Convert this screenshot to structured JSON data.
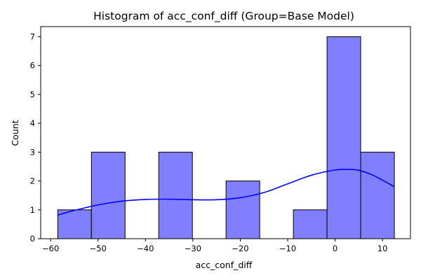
{
  "chart_data": {
    "type": "bar",
    "title": "Histogram of acc_conf_diff (Group=Base Model)",
    "xlabel": "acc_conf_diff",
    "ylabel": "Count",
    "xlim": [
      -62.1,
      15.9
    ],
    "ylim": [
      0,
      7.35
    ],
    "xticks": [
      -60,
      -50,
      -40,
      -30,
      -20,
      -10,
      0,
      10
    ],
    "xtick_labels": [
      "−60",
      "−50",
      "−40",
      "−30",
      "−20",
      "−10",
      "0",
      "10"
    ],
    "yticks": [
      0,
      1,
      2,
      3,
      4,
      5,
      6,
      7
    ],
    "ytick_labels": [
      "0",
      "1",
      "2",
      "3",
      "4",
      "5",
      "6",
      "7"
    ],
    "bins": [
      {
        "x0": -58.5,
        "x1": -51.4,
        "count": 1
      },
      {
        "x0": -51.4,
        "x1": -44.3,
        "count": 3
      },
      {
        "x0": -44.3,
        "x1": -37.2,
        "count": 0
      },
      {
        "x0": -37.2,
        "x1": -30.1,
        "count": 3
      },
      {
        "x0": -30.1,
        "x1": -23.0,
        "count": 0
      },
      {
        "x0": -23.0,
        "x1": -15.9,
        "count": 2
      },
      {
        "x0": -15.9,
        "x1": -8.8,
        "count": 0
      },
      {
        "x0": -8.8,
        "x1": -1.7,
        "count": 1
      },
      {
        "x0": -1.7,
        "x1": 5.4,
        "count": 7
      },
      {
        "x0": 5.4,
        "x1": 12.5,
        "count": 3
      }
    ],
    "kde": {
      "x": [
        -58.5,
        -55,
        -50,
        -45,
        -40,
        -35,
        -30,
        -25,
        -20,
        -15,
        -10,
        -5,
        0,
        3,
        5,
        8,
        12.5
      ],
      "y": [
        0.82,
        0.98,
        1.17,
        1.3,
        1.36,
        1.37,
        1.35,
        1.35,
        1.42,
        1.6,
        1.9,
        2.2,
        2.38,
        2.4,
        2.37,
        2.2,
        1.8
      ]
    },
    "bar_fill": "#7f7fff",
    "bar_edge": "#000000",
    "kde_color": "#0000ff",
    "grid": false,
    "legend": "none"
  }
}
